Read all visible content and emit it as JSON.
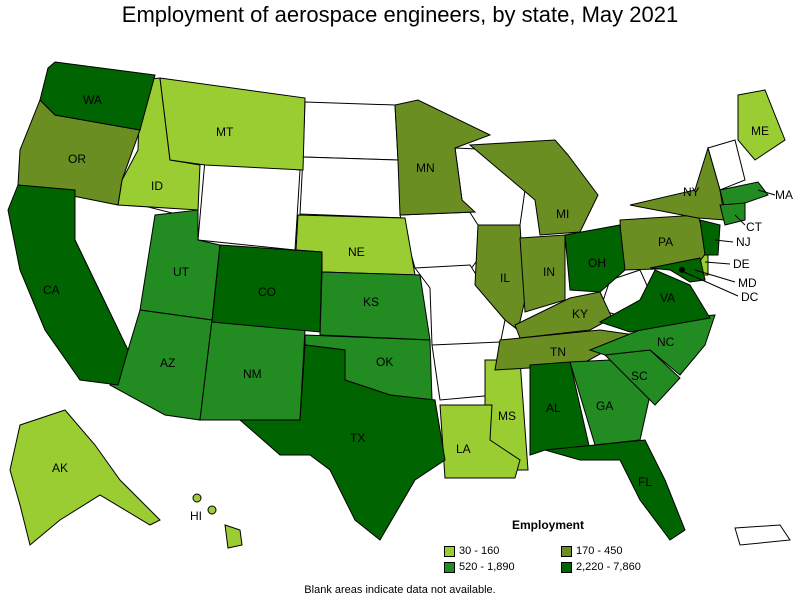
{
  "title": "Employment of aerospace engineers, by state, May 2021",
  "legend": {
    "title": "Employment",
    "items": [
      {
        "label": "30 - 160",
        "color": "#9acd32"
      },
      {
        "label": "170 - 450",
        "color": "#6b8e23"
      },
      {
        "label": "520 - 1,890",
        "color": "#228b22"
      },
      {
        "label": "2,220 - 7,860",
        "color": "#006400"
      }
    ]
  },
  "footnote": "Blank areas indicate data not available.",
  "colors": {
    "c1": "#9acd32",
    "c2": "#6b8e23",
    "c3": "#228b22",
    "c4": "#006400",
    "blank": "#ffffff"
  },
  "states": {
    "WA": "WA",
    "OR": "OR",
    "CA": "CA",
    "ID": "ID",
    "MT": "MT",
    "UT": "UT",
    "AZ": "AZ",
    "CO": "CO",
    "NM": "NM",
    "TX": "TX",
    "NE": "NE",
    "KS": "KS",
    "OK": "OK",
    "MN": "MN",
    "IL": "IL",
    "IN": "IN",
    "MI": "MI",
    "OH": "OH",
    "KY": "KY",
    "TN": "TN",
    "MS": "MS",
    "AL": "AL",
    "LA": "LA",
    "GA": "GA",
    "FL": "FL",
    "SC": "SC",
    "NC": "NC",
    "VA": "VA",
    "PA": "PA",
    "NY": "NY",
    "ME": "ME",
    "MA": "MA",
    "CT": "CT",
    "NJ": "NJ",
    "DE": "DE",
    "MD": "MD",
    "DC": "DC",
    "AK": "AK",
    "HI": "HI"
  }
}
